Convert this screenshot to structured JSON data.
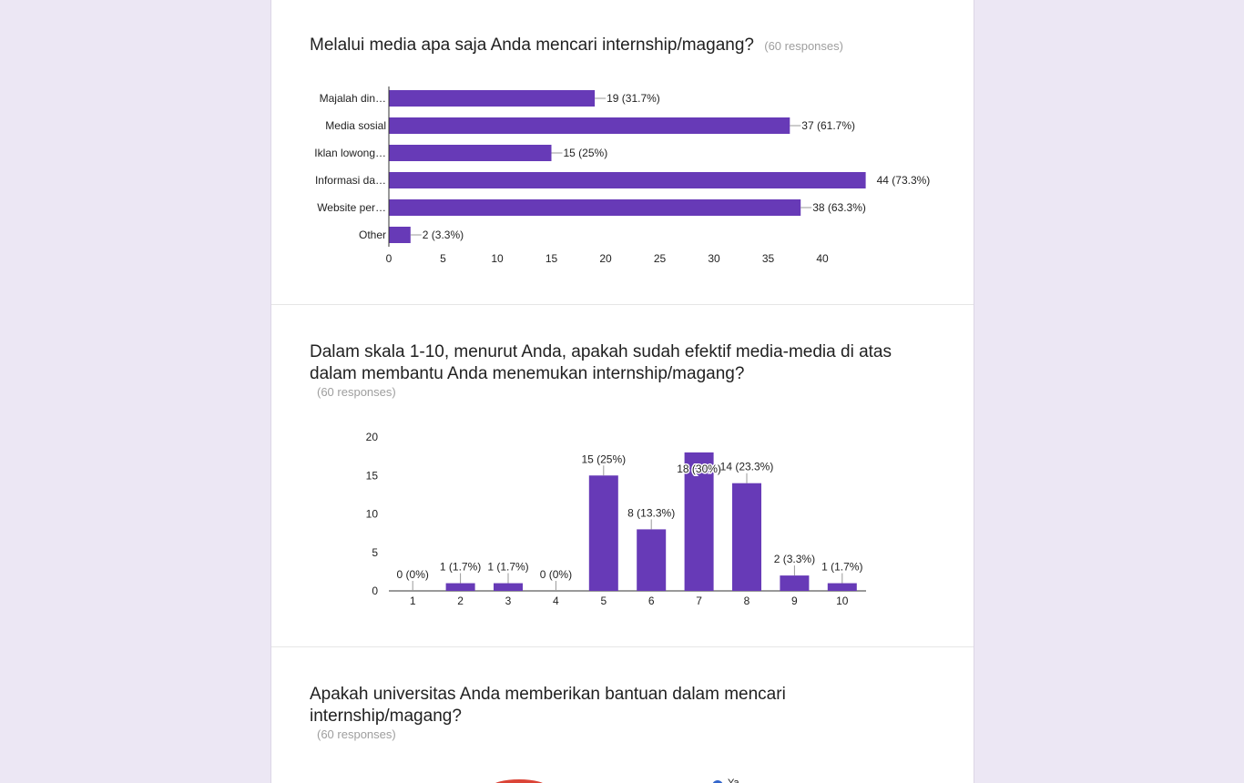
{
  "colors": {
    "bar": "#673ab7",
    "page_bg": "#ece7f4",
    "accent_pie": "#db4437",
    "legend_dot": "#3366cc"
  },
  "sections": [
    {
      "title": "Melalui media apa saja Anda mencari internship/magang?",
      "responses": "(60 responses)",
      "chart_data": {
        "type": "bar",
        "orientation": "horizontal",
        "categories": [
          "Majalah din…",
          "Media sosial",
          "Iklan lowong…",
          "Informasi da…",
          "Website per…",
          "Other"
        ],
        "values": [
          19,
          37,
          15,
          44,
          38,
          2
        ],
        "data_labels": [
          "19 (31.7%)",
          "37 (61.7%)",
          "15 (25%)",
          "44 (73.3%)",
          "38 (63.3%)",
          "2 (3.3%)"
        ],
        "xlim": [
          0,
          44
        ],
        "ticks": [
          "0",
          "5",
          "10",
          "15",
          "20",
          "25",
          "30",
          "35",
          "40"
        ],
        "tick_values": [
          0,
          5,
          10,
          15,
          20,
          25,
          30,
          35,
          40
        ]
      }
    },
    {
      "title_line1": "Dalam skala 1-10, menurut Anda, apakah sudah efektif media-media di atas",
      "title_line2": "dalam membantu Anda menemukan internship/magang?",
      "responses": "(60 responses)",
      "chart_data": {
        "type": "bar",
        "orientation": "vertical",
        "categories": [
          "1",
          "2",
          "3",
          "4",
          "5",
          "6",
          "7",
          "8",
          "9",
          "10"
        ],
        "values": [
          0,
          1,
          1,
          0,
          15,
          8,
          18,
          14,
          2,
          1
        ],
        "data_labels": [
          "0 (0%)",
          "1 (1.7%)",
          "1 (1.7%)",
          "0 (0%)",
          "15 (25%)",
          "8 (13.3%)",
          "18 (30%)",
          "14 (23.3%)",
          "2 (3.3%)",
          "1 (1.7%)"
        ],
        "ylim": [
          0,
          20
        ],
        "ticks": [
          "0",
          "5",
          "10",
          "15",
          "20"
        ],
        "tick_values": [
          0,
          5,
          10,
          15,
          20
        ]
      }
    },
    {
      "title_line1": "Apakah universitas Anda memberikan bantuan dalam mencari",
      "title_line2": "internship/magang?",
      "responses": "(60 responses)",
      "legend_partial": "Ya"
    }
  ]
}
